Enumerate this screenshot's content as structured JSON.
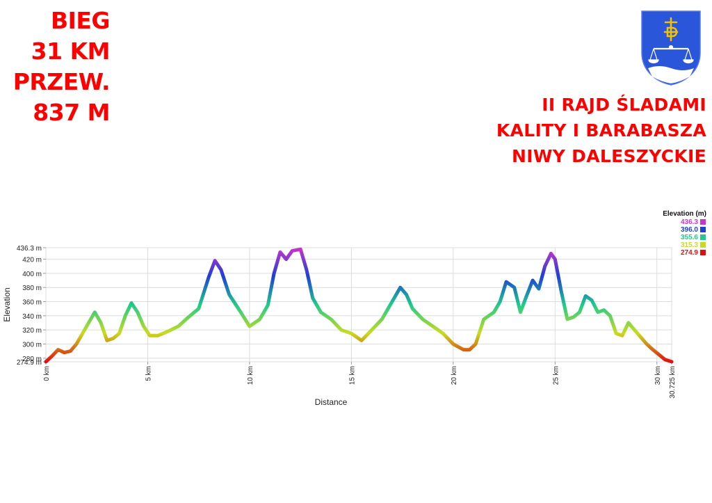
{
  "header": {
    "left_lines": [
      "BIEG",
      "31 KM",
      "PRZEW.",
      "837 M"
    ],
    "right_lines": [
      "II RAJD ŚLADAMI",
      "KALITY I BARABASZA",
      "NIWY DALESZYCKIE"
    ]
  },
  "logo": {
    "icon": "coat-of-arms-icon",
    "shield_color": "#2a56d9",
    "accent_color": "#f2c200"
  },
  "colors": {
    "title_red": "#ff0000",
    "grid": "#dcdcdc",
    "axis": "#999999"
  },
  "chart_data": {
    "type": "line",
    "title": "",
    "xlabel": "Distance",
    "ylabel": "Elevation",
    "xlim": [
      0,
      30.725
    ],
    "ylim": [
      274.9,
      436.3
    ],
    "x_ticks": [
      0,
      5,
      10,
      15,
      20,
      25,
      30,
      30.725
    ],
    "x_tick_labels": [
      "0 km",
      "5 km",
      "10 km",
      "15 km",
      "20 km",
      "25 km",
      "30 km",
      "30.725 km"
    ],
    "y_ticks": [
      274.9,
      280,
      300,
      320,
      340,
      360,
      380,
      400,
      420,
      436.3
    ],
    "y_tick_labels": [
      "274.9 m",
      "280 m",
      "300 m",
      "320 m",
      "340 m",
      "360 m",
      "380 m",
      "400 m",
      "420 m",
      "436.3 m"
    ],
    "grid": true,
    "legend": {
      "title": "Elevation (m)",
      "placement": "top-right",
      "entries": [
        {
          "label": "436.3",
          "color": "#cc33cc"
        },
        {
          "label": "396.0",
          "color": "#1f3fd6"
        },
        {
          "label": "355.6",
          "color": "#1ecb8a"
        },
        {
          "label": "315.3",
          "color": "#c8dc1e"
        },
        {
          "label": "274.9",
          "color": "#e01010"
        }
      ]
    },
    "series": [
      {
        "x": [
          0,
          0.3,
          0.6,
          0.9,
          1.2,
          1.5,
          1.8,
          2.1,
          2.4,
          2.7,
          3.0,
          3.3,
          3.6,
          3.9,
          4.2,
          4.5,
          4.8,
          5.1,
          5.5,
          6.0,
          6.5,
          7.0,
          7.5,
          8.0,
          8.3,
          8.6,
          9.0,
          9.5,
          10.0,
          10.5,
          10.9,
          11.2,
          11.5,
          11.8,
          12.1,
          12.5,
          12.8,
          13.1,
          13.5,
          14.0,
          14.5,
          15.0,
          15.5,
          16.0,
          16.5,
          17.0,
          17.4,
          17.7,
          18.0,
          18.5,
          19.0,
          19.5,
          20.0,
          20.5,
          20.8,
          21.1,
          21.5,
          22.0,
          22.3,
          22.6,
          23.0,
          23.3,
          23.6,
          23.9,
          24.2,
          24.5,
          24.8,
          25.0,
          25.3,
          25.6,
          25.9,
          26.2,
          26.5,
          26.8,
          27.1,
          27.4,
          27.7,
          28.0,
          28.3,
          28.6,
          28.9,
          29.2,
          29.5,
          29.8,
          30.1,
          30.4,
          30.725
        ],
        "y": [
          275,
          283,
          292,
          288,
          290,
          300,
          315,
          330,
          345,
          330,
          305,
          308,
          315,
          340,
          358,
          345,
          325,
          312,
          312,
          318,
          325,
          338,
          350,
          395,
          418,
          405,
          370,
          348,
          325,
          335,
          355,
          400,
          430,
          420,
          432,
          434,
          405,
          365,
          345,
          335,
          320,
          315,
          305,
          320,
          335,
          360,
          380,
          370,
          350,
          335,
          325,
          315,
          300,
          292,
          292,
          300,
          335,
          345,
          360,
          388,
          380,
          345,
          368,
          390,
          378,
          410,
          428,
          420,
          375,
          335,
          338,
          345,
          368,
          362,
          345,
          348,
          340,
          315,
          312,
          330,
          320,
          310,
          300,
          292,
          285,
          278,
          275
        ]
      }
    ]
  }
}
